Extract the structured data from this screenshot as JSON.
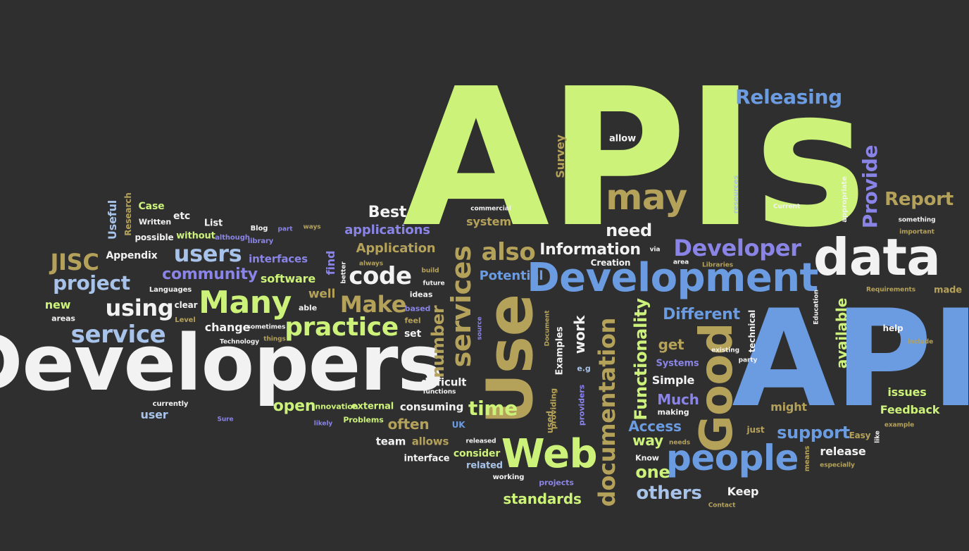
{
  "palette": {
    "background": "#2f2f2f",
    "lime": "#ccf27a",
    "white": "#f2f2f2",
    "blue": "#6b9be0",
    "purple": "#8a84e6",
    "khaki": "#b5a25a",
    "lightblue": "#a8c3ea"
  },
  "words": [
    {
      "text": "APIs",
      "color": "lime"
    },
    {
      "text": "API",
      "color": "blue"
    },
    {
      "text": "Developers",
      "color": "white"
    },
    {
      "text": "Development",
      "color": "blue"
    },
    {
      "text": "data",
      "color": "white"
    },
    {
      "text": "Use",
      "color": "khaki"
    },
    {
      "text": "Web",
      "color": "lime"
    },
    {
      "text": "people",
      "color": "blue"
    },
    {
      "text": "Good",
      "color": "khaki"
    },
    {
      "text": "documentation",
      "color": "khaki"
    },
    {
      "text": "may",
      "color": "khaki"
    },
    {
      "text": "Many",
      "color": "lime"
    },
    {
      "text": "services",
      "color": "khaki"
    },
    {
      "text": "practice",
      "color": "lime"
    },
    {
      "text": "users",
      "color": "lightblue"
    },
    {
      "text": "service",
      "color": "lightblue"
    },
    {
      "text": "using",
      "color": "white"
    },
    {
      "text": "code",
      "color": "white"
    },
    {
      "text": "also",
      "color": "khaki"
    },
    {
      "text": "Developer",
      "color": "purple"
    },
    {
      "text": "Make",
      "color": "khaki"
    },
    {
      "text": "JISC",
      "color": "khaki"
    },
    {
      "text": "project",
      "color": "lightblue"
    },
    {
      "text": "time",
      "color": "lime"
    },
    {
      "text": "Releasing",
      "color": "blue"
    },
    {
      "text": "Provide",
      "color": "purple"
    },
    {
      "text": "Report",
      "color": "khaki"
    },
    {
      "text": "need",
      "color": "white"
    },
    {
      "text": "Information",
      "color": "white"
    },
    {
      "text": "community",
      "color": "purple"
    },
    {
      "text": "Functionality",
      "color": "lime"
    },
    {
      "text": "number",
      "color": "khaki"
    },
    {
      "text": "Different",
      "color": "blue"
    },
    {
      "text": "others",
      "color": "lightblue"
    },
    {
      "text": "support",
      "color": "blue"
    },
    {
      "text": "standards",
      "color": "lime"
    },
    {
      "text": "open",
      "color": "lime"
    },
    {
      "text": "Best",
      "color": "white"
    },
    {
      "text": "applications",
      "color": "purple"
    },
    {
      "text": "Application",
      "color": "khaki"
    },
    {
      "text": "Potential",
      "color": "blue"
    },
    {
      "text": "work",
      "color": "white"
    },
    {
      "text": "available",
      "color": "lime"
    },
    {
      "text": "Access",
      "color": "blue"
    },
    {
      "text": "one",
      "color": "lime"
    },
    {
      "text": "way",
      "color": "lime"
    },
    {
      "text": "often",
      "color": "khaki"
    },
    {
      "text": "interfaces",
      "color": "purple"
    },
    {
      "text": "software",
      "color": "lime"
    },
    {
      "text": "well",
      "color": "khaki"
    },
    {
      "text": "find",
      "color": "purple"
    },
    {
      "text": "get",
      "color": "khaki"
    },
    {
      "text": "Much",
      "color": "purple"
    },
    {
      "text": "Simple",
      "color": "white"
    },
    {
      "text": "Feedback",
      "color": "lime"
    },
    {
      "text": "issues",
      "color": "lime"
    },
    {
      "text": "release",
      "color": "white"
    },
    {
      "text": "might",
      "color": "khaki"
    },
    {
      "text": "Keep",
      "color": "white"
    },
    {
      "text": "change",
      "color": "white"
    },
    {
      "text": "Survey",
      "color": "khaki"
    },
    {
      "text": "system",
      "color": "khaki"
    },
    {
      "text": "new",
      "color": "lime"
    },
    {
      "text": "user",
      "color": "lightblue"
    },
    {
      "text": "Appendix",
      "color": "white"
    },
    {
      "text": "Useful",
      "color": "lightblue"
    },
    {
      "text": "Case",
      "color": "lime"
    },
    {
      "text": "etc",
      "color": "white"
    },
    {
      "text": "List",
      "color": "white"
    },
    {
      "text": "without",
      "color": "lime"
    },
    {
      "text": "Research",
      "color": "khaki"
    },
    {
      "text": "Written",
      "color": "white"
    },
    {
      "text": "possible",
      "color": "white"
    },
    {
      "text": "clear",
      "color": "white"
    },
    {
      "text": "Level",
      "color": "khaki"
    },
    {
      "text": "technical",
      "color": "white"
    },
    {
      "text": "help",
      "color": "white"
    },
    {
      "text": "made",
      "color": "khaki"
    },
    {
      "text": "consuming",
      "color": "white"
    },
    {
      "text": "external",
      "color": "lime"
    },
    {
      "text": "difficult",
      "color": "white"
    },
    {
      "text": "set",
      "color": "white"
    },
    {
      "text": "team",
      "color": "white"
    },
    {
      "text": "allows",
      "color": "khaki"
    },
    {
      "text": "consider",
      "color": "lime"
    },
    {
      "text": "related",
      "color": "lightblue"
    },
    {
      "text": "interface",
      "color": "white"
    },
    {
      "text": "Problems",
      "color": "lime"
    },
    {
      "text": "UK",
      "color": "blue"
    },
    {
      "text": "Examples",
      "color": "white"
    },
    {
      "text": "providing",
      "color": "khaki"
    },
    {
      "text": "used",
      "color": "khaki"
    },
    {
      "text": "providers",
      "color": "purple"
    },
    {
      "text": "e.g",
      "color": "lightblue"
    },
    {
      "text": "Systems",
      "color": "purple"
    },
    {
      "text": "making",
      "color": "white"
    },
    {
      "text": "Creation",
      "color": "white"
    },
    {
      "text": "allow",
      "color": "white"
    },
    {
      "text": "commercial",
      "color": "white"
    },
    {
      "text": "resources",
      "color": "lightblue"
    },
    {
      "text": "appropriate",
      "color": "white"
    },
    {
      "text": "something",
      "color": "white"
    },
    {
      "text": "important",
      "color": "khaki"
    },
    {
      "text": "Requirements",
      "color": "khaki"
    },
    {
      "text": "Libraries",
      "color": "khaki"
    },
    {
      "text": "Education",
      "color": "white"
    },
    {
      "text": "area",
      "color": "white"
    },
    {
      "text": "include",
      "color": "khaki"
    },
    {
      "text": "existing",
      "color": "white"
    },
    {
      "text": "party",
      "color": "white"
    },
    {
      "text": "via",
      "color": "white"
    },
    {
      "text": "Current",
      "color": "white"
    },
    {
      "text": "means",
      "color": "khaki"
    },
    {
      "text": "Easy",
      "color": "khaki"
    },
    {
      "text": "like",
      "color": "white"
    },
    {
      "text": "just",
      "color": "khaki"
    },
    {
      "text": "needs",
      "color": "khaki"
    },
    {
      "text": "Know",
      "color": "white"
    },
    {
      "text": "projects",
      "color": "purple"
    },
    {
      "text": "working",
      "color": "white"
    },
    {
      "text": "Contact",
      "color": "khaki"
    },
    {
      "text": "especially",
      "color": "khaki"
    },
    {
      "text": "example",
      "color": "khaki"
    },
    {
      "text": "released",
      "color": "white"
    },
    {
      "text": "functions",
      "color": "white"
    },
    {
      "text": "Innovation",
      "color": "lime"
    },
    {
      "text": "likely",
      "color": "purple"
    },
    {
      "text": "Sure",
      "color": "purple"
    },
    {
      "text": "currently",
      "color": "white"
    },
    {
      "text": "Technology",
      "color": "white"
    },
    {
      "text": "sometimes",
      "color": "white"
    },
    {
      "text": "things",
      "color": "khaki"
    },
    {
      "text": "feel",
      "color": "khaki"
    },
    {
      "text": "based",
      "color": "purple"
    },
    {
      "text": "ideas",
      "color": "white"
    },
    {
      "text": "future",
      "color": "white"
    },
    {
      "text": "build",
      "color": "khaki"
    },
    {
      "text": "always",
      "color": "khaki"
    },
    {
      "text": "better",
      "color": "white"
    },
    {
      "text": "able",
      "color": "white"
    },
    {
      "text": "Languages",
      "color": "white"
    },
    {
      "text": "areas",
      "color": "white"
    },
    {
      "text": "although",
      "color": "purple"
    },
    {
      "text": "Blog",
      "color": "white"
    },
    {
      "text": "part",
      "color": "purple"
    },
    {
      "text": "ways",
      "color": "khaki"
    },
    {
      "text": "library",
      "color": "purple"
    },
    {
      "text": "Document",
      "color": "khaki"
    },
    {
      "text": "source",
      "color": "purple"
    },
    {
      "text": "key",
      "color": "white"
    }
  ]
}
